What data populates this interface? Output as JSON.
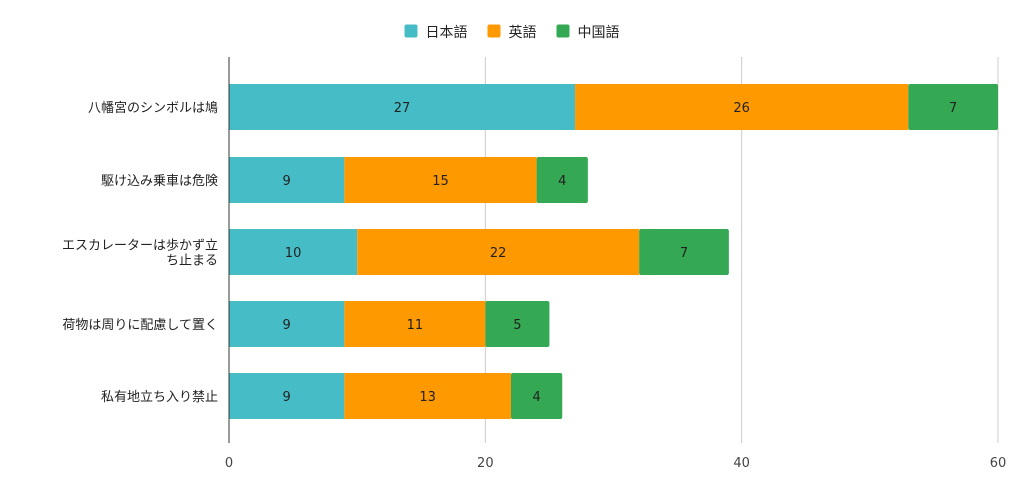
{
  "chart_data": {
    "type": "bar",
    "orientation": "horizontal",
    "stacked": true,
    "title": "",
    "xlabel": "",
    "ylabel": "",
    "categories": [
      [
        "八幡宮のシンボルは鳩"
      ],
      [
        "駆け込み乗車は危険"
      ],
      [
        "エスカレーターは歩かず立",
        "ち止まる"
      ],
      [
        "荷物は周りに配慮して置く"
      ],
      [
        "私有地立ち入り禁止"
      ]
    ],
    "series": [
      {
        "name": "日本語",
        "color": "#46bdc6",
        "values": [
          27,
          9,
          10,
          9,
          9
        ]
      },
      {
        "name": "英語",
        "color": "#ff9900",
        "values": [
          26,
          15,
          22,
          11,
          13
        ]
      },
      {
        "name": "中国語",
        "color": "#34a853",
        "values": [
          7,
          4,
          7,
          5,
          4
        ]
      }
    ],
    "xlim": [
      0,
      60
    ],
    "xticks": [
      0,
      20,
      40,
      60
    ],
    "grid": true,
    "legend": "top-center",
    "data_labels": true
  }
}
